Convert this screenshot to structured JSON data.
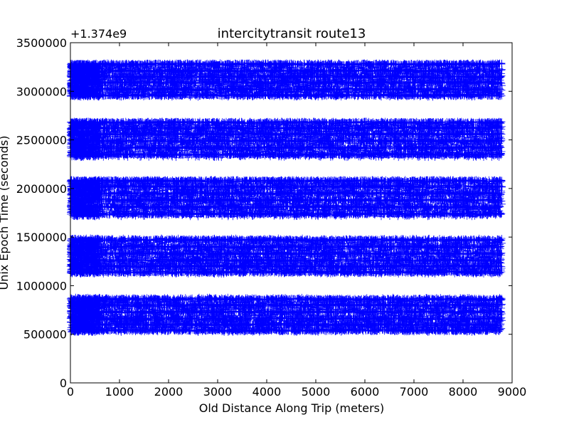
{
  "chart_data": {
    "type": "scatter",
    "title": "intercitytransit route13",
    "xlabel": "Old Distance Along Trip (meters)",
    "ylabel": "Unix Epoch Time (seconds)",
    "y_offset_label": "+1.374e9",
    "xlim": [
      0,
      9000
    ],
    "ylim": [
      0,
      3500000
    ],
    "x_ticks": [
      "0",
      "1000",
      "2000",
      "3000",
      "4000",
      "5000",
      "6000",
      "7000",
      "8000",
      "9000"
    ],
    "y_ticks": [
      "0",
      "500000",
      "1000000",
      "1500000",
      "2000000",
      "2500000",
      "3000000",
      "3500000"
    ],
    "grid": false,
    "marker": "+",
    "marker_color": "#0000ff",
    "x_data_range": [
      0,
      8800
    ],
    "series": [
      {
        "bands": [
          {
            "y_range": [
              520000,
              880000
            ],
            "trip_lines": [
              540000,
              600000,
              660000,
              730000,
              800000,
              860000
            ]
          },
          {
            "y_range": [
              1120000,
              1490000
            ],
            "trip_lines": [
              1140000,
              1200000,
              1260000,
              1330000,
              1400000,
              1470000
            ]
          },
          {
            "y_range": [
              1710000,
              2090000
            ],
            "trip_lines": [
              1740000,
              1810000,
              1880000,
              1950000,
              2020000,
              2080000
            ]
          },
          {
            "y_range": [
              2320000,
              2690000
            ],
            "trip_lines": [
              2350000,
              2420000,
              2490000,
              2560000,
              2620000,
              2680000
            ]
          },
          {
            "y_range": [
              2940000,
              3290000
            ],
            "trip_lines": [
              2960000,
              3020000,
              3090000,
              3150000,
              3210000,
              3280000
            ]
          }
        ]
      }
    ]
  }
}
